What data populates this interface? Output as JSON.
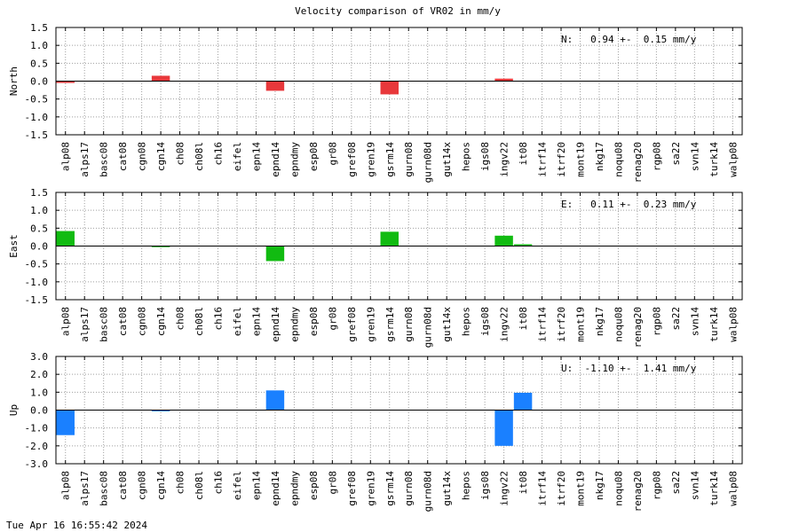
{
  "title": "Velocity comparison of VR02 in mm/y",
  "footer": "Tue Apr 16 16:55:42 2024",
  "stations": [
    "alp08",
    "alps17",
    "basc08",
    "cat08",
    "cgn08",
    "cgn14",
    "ch08",
    "ch08l",
    "ch16",
    "eifel",
    "epn14",
    "epnd14",
    "epndmy",
    "esp08",
    "gr08",
    "gref08",
    "gren19",
    "gsrm14",
    "gurn08",
    "gurn08d",
    "gut14x",
    "hepos",
    "igs08",
    "ingv22",
    "it08",
    "itrf14",
    "itrf20",
    "mont19",
    "nkg17",
    "noqu08",
    "renag20",
    "rgp08",
    "sa22",
    "svn14",
    "turk14",
    "walp08"
  ],
  "chart_data": [
    {
      "type": "bar",
      "ylabel": "North",
      "ylim": [
        -1.5,
        1.5
      ],
      "yticks": [
        "-1.5",
        "-1.0",
        "-0.5",
        "0.0",
        "0.5",
        "1.0",
        "1.5"
      ],
      "ytick_values": [
        -1.5,
        -1.0,
        -0.5,
        0.0,
        0.5,
        1.0,
        1.5
      ],
      "color": "#e8383b",
      "annotation": "N:   0.94 +-  0.15 mm/y",
      "values": [
        -0.05,
        null,
        null,
        null,
        null,
        0.15,
        null,
        null,
        null,
        null,
        null,
        -0.27,
        null,
        null,
        null,
        null,
        null,
        -0.37,
        null,
        null,
        null,
        null,
        null,
        0.07,
        null,
        null,
        null,
        null,
        null,
        null,
        null,
        null,
        null,
        null,
        null,
        null
      ]
    },
    {
      "type": "bar",
      "ylabel": "East",
      "ylim": [
        -1.5,
        1.5
      ],
      "yticks": [
        "-1.5",
        "-1.0",
        "-0.5",
        "0.0",
        "0.5",
        "1.0",
        "1.5"
      ],
      "ytick_values": [
        -1.5,
        -1.0,
        -0.5,
        0.0,
        0.5,
        1.0,
        1.5
      ],
      "color": "#11bb11",
      "annotation": "E:   0.11 +-  0.23 mm/y",
      "values": [
        0.42,
        null,
        null,
        null,
        null,
        -0.03,
        null,
        null,
        null,
        null,
        null,
        -0.42,
        null,
        null,
        null,
        null,
        null,
        0.4,
        null,
        null,
        null,
        null,
        null,
        0.29,
        0.05,
        null,
        null,
        null,
        null,
        null,
        null,
        null,
        null,
        null,
        null,
        null
      ]
    },
    {
      "type": "bar",
      "ylabel": "Up",
      "ylim": [
        -3.0,
        3.0
      ],
      "yticks": [
        "-3.0",
        "-2.0",
        "-1.0",
        "0.0",
        "1.0",
        "2.0",
        "3.0"
      ],
      "ytick_values": [
        -3.0,
        -2.0,
        -1.0,
        0.0,
        1.0,
        2.0,
        3.0
      ],
      "color": "#1a80ff",
      "annotation": "U:  -1.10 +-  1.41 mm/y",
      "values": [
        -1.4,
        null,
        null,
        null,
        null,
        -0.07,
        null,
        null,
        null,
        null,
        null,
        1.1,
        null,
        null,
        null,
        null,
        null,
        null,
        null,
        null,
        null,
        null,
        null,
        -2.0,
        0.97,
        null,
        null,
        null,
        null,
        null,
        null,
        null,
        null,
        null,
        null,
        null
      ]
    }
  ]
}
